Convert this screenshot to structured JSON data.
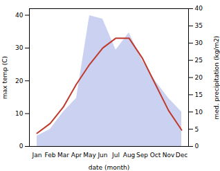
{
  "chart_data": {
    "type": "line",
    "categories": [
      "Jan",
      "Feb",
      "Mar",
      "Apr",
      "May",
      "Jun",
      "Jul",
      "Aug",
      "Sep",
      "Oct",
      "Nov",
      "Dec"
    ],
    "series": [
      {
        "type": "area",
        "axis": "y2",
        "color": "#c5cdf0",
        "values": [
          3,
          5,
          10,
          14,
          38,
          37,
          28,
          33,
          25,
          19,
          14,
          10
        ]
      },
      {
        "type": "line",
        "color": "#c0392b",
        "values": [
          4,
          7,
          12,
          19,
          25,
          30,
          33,
          33,
          27,
          19,
          11,
          5
        ]
      }
    ],
    "xlabel": "date (month)",
    "ylabel": "max temp (C)",
    "y2label": "med. precipitation (kg/m2)",
    "ylim": [
      0,
      42
    ],
    "yticks": [
      0,
      10,
      20,
      30,
      40
    ],
    "y2lim": [
      0,
      40
    ],
    "y2ticks": [
      0,
      5,
      10,
      15,
      20,
      25,
      30,
      35,
      40
    ],
    "grid": false
  }
}
